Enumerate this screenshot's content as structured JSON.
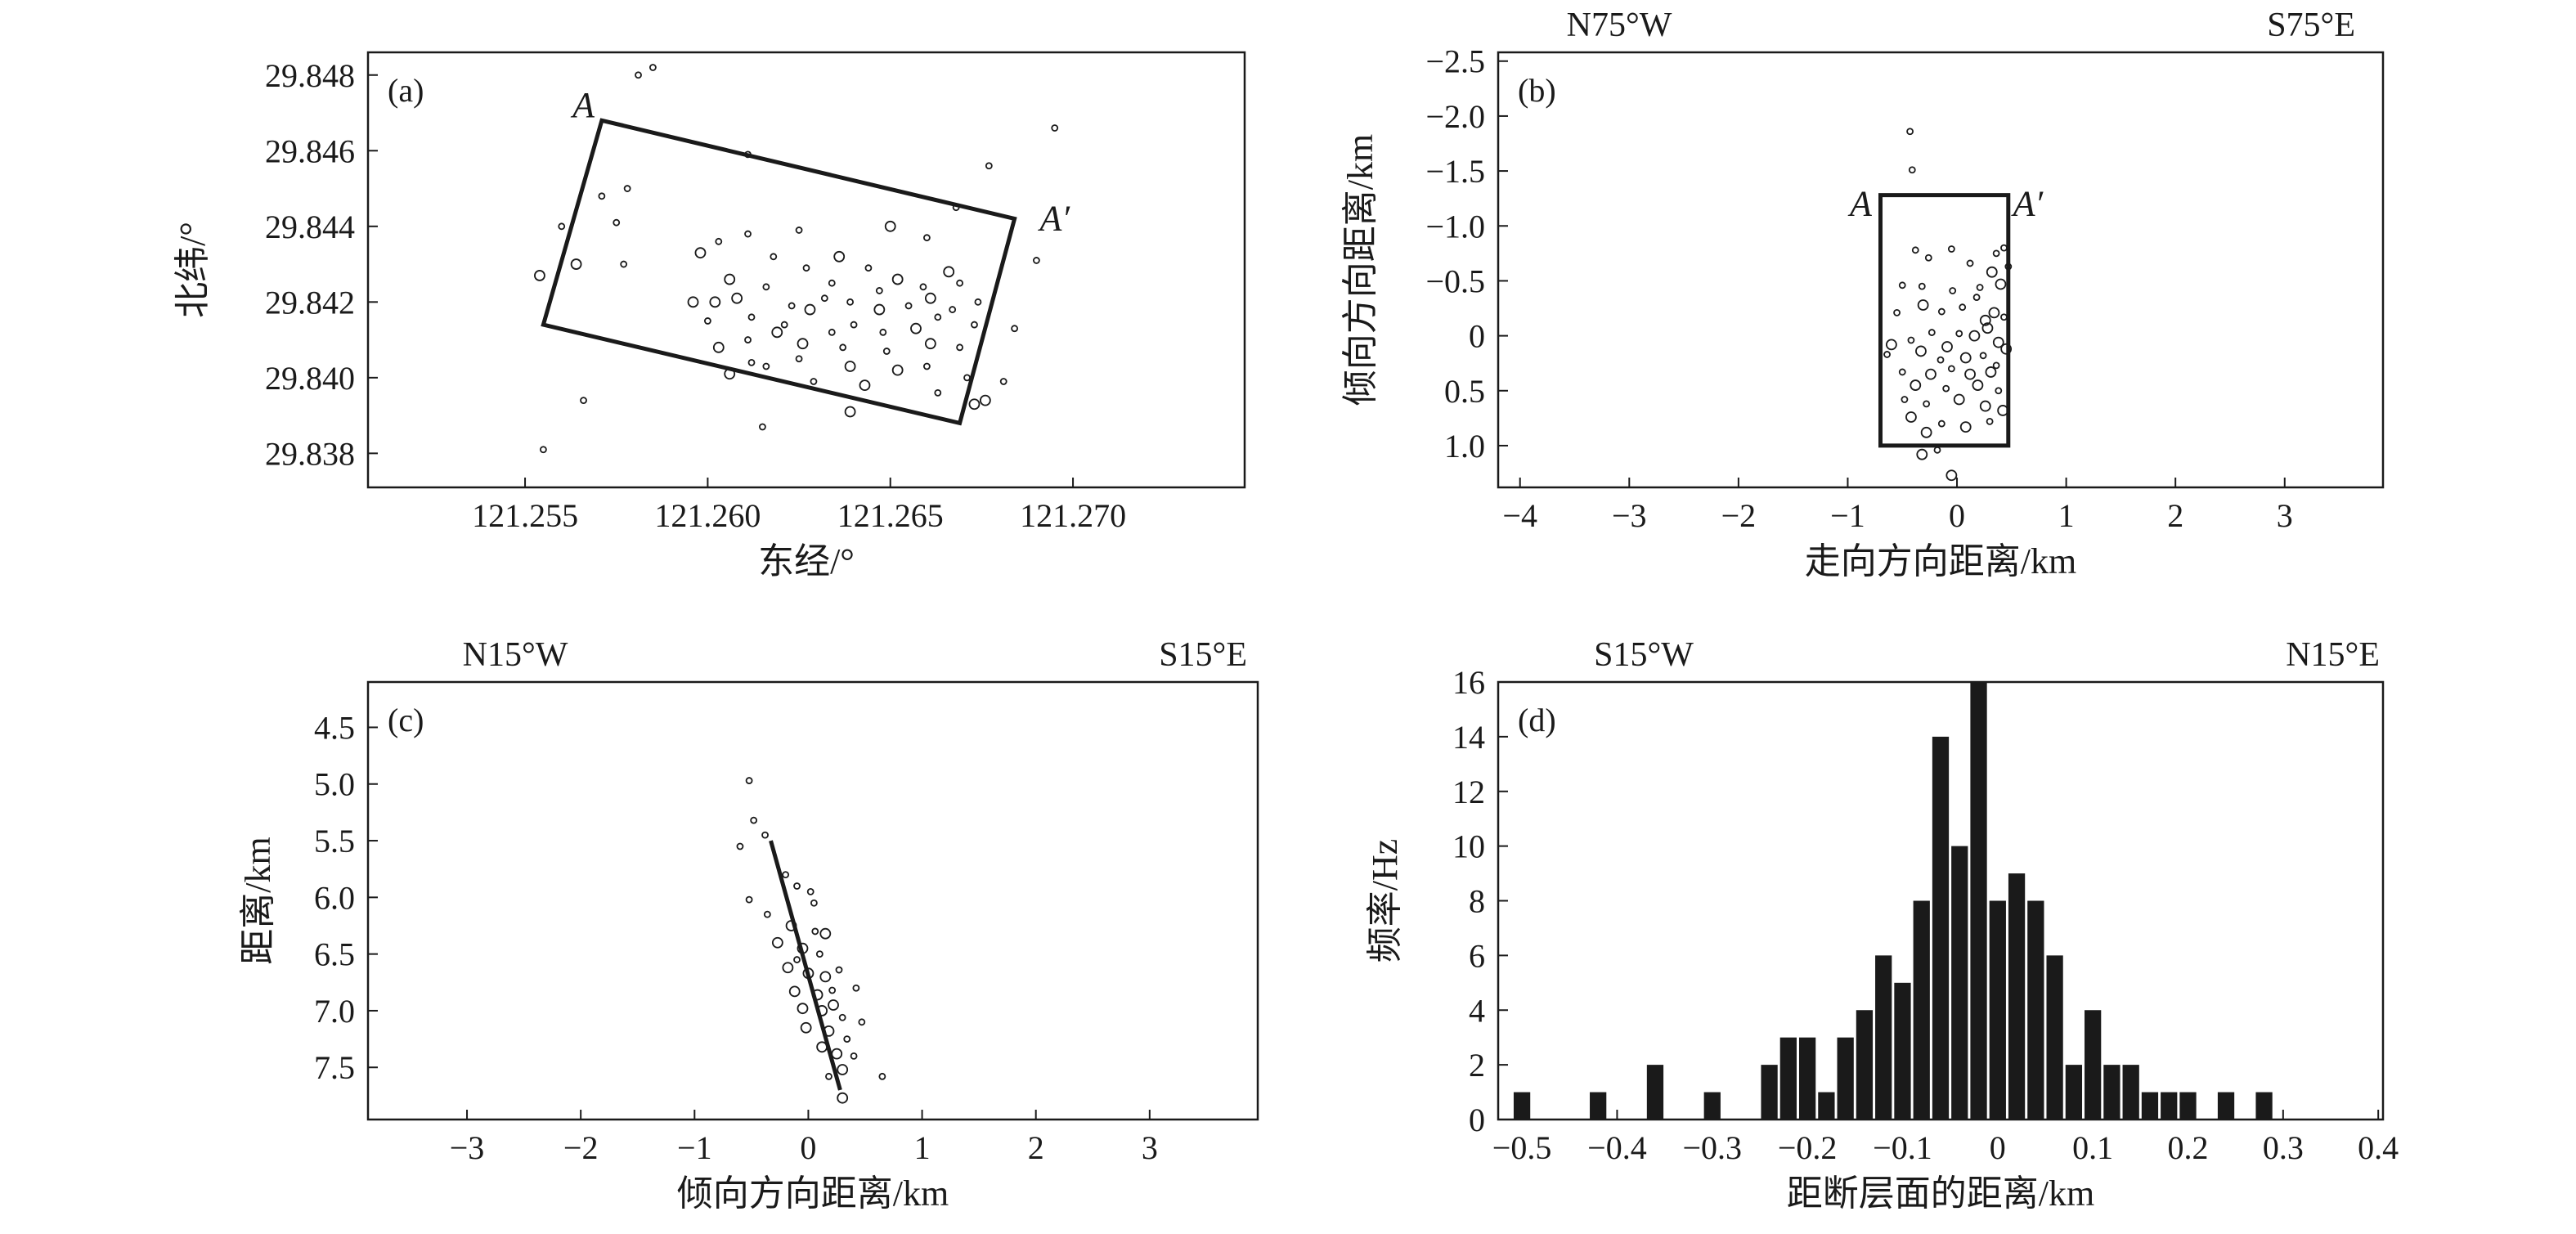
{
  "chart_data": [
    {
      "panel": "a",
      "type": "scatter",
      "panel_label": "(a)",
      "xlabel": "东经/°",
      "ylabel": "北纬/°",
      "xticks": [
        121.255,
        121.26,
        121.265,
        121.27
      ],
      "xtick_labels": [
        "121.255",
        "121.260",
        "121.265",
        "121.270"
      ],
      "yticks": [
        29.838,
        29.84,
        29.842,
        29.844,
        29.846,
        29.848
      ],
      "ytick_labels": [
        "29.838",
        "29.840",
        "29.842",
        "29.844",
        "29.846",
        "29.848"
      ],
      "xlim": [
        121.2507,
        121.2747
      ],
      "ylim": [
        29.8371,
        29.8486
      ],
      "outline": {
        "corners": [
          [
            121.2571,
            29.8468
          ],
          [
            121.2684,
            29.8442
          ],
          [
            121.2669,
            29.8388
          ],
          [
            121.2555,
            29.8414
          ]
        ],
        "labels": [
          {
            "text": "A",
            "x": 121.2566,
            "y": 29.8472
          },
          {
            "text": "A′",
            "x": 121.2695,
            "y": 29.8442
          }
        ]
      },
      "points": [
        [
          121.2581,
          29.848,
          1
        ],
        [
          121.2585,
          29.8482,
          1
        ],
        [
          121.2695,
          29.8466,
          1
        ],
        [
          121.2677,
          29.8456,
          1
        ],
        [
          121.2611,
          29.8459,
          1
        ],
        [
          121.2571,
          29.8448,
          1
        ],
        [
          121.2578,
          29.845,
          1
        ],
        [
          121.256,
          29.844,
          1
        ],
        [
          121.2575,
          29.8441,
          1
        ],
        [
          121.2625,
          29.8439,
          1
        ],
        [
          121.265,
          29.844,
          2
        ],
        [
          121.2668,
          29.8445,
          1
        ],
        [
          121.266,
          29.8437,
          1
        ],
        [
          121.2554,
          29.8427,
          2
        ],
        [
          121.2564,
          29.843,
          2
        ],
        [
          121.2577,
          29.843,
          1
        ],
        [
          121.2598,
          29.8433,
          2
        ],
        [
          121.2603,
          29.8436,
          1
        ],
        [
          121.2611,
          29.8438,
          1
        ],
        [
          121.2618,
          29.8432,
          1
        ],
        [
          121.2627,
          29.8429,
          1
        ],
        [
          121.2636,
          29.8432,
          2
        ],
        [
          121.2606,
          29.8426,
          2
        ],
        [
          121.2616,
          29.8424,
          1
        ],
        [
          121.2634,
          29.8425,
          1
        ],
        [
          121.2644,
          29.8429,
          1
        ],
        [
          121.2652,
          29.8426,
          2
        ],
        [
          121.2659,
          29.8424,
          1
        ],
        [
          121.2669,
          29.8425,
          1
        ],
        [
          121.269,
          29.8431,
          1
        ],
        [
          121.2596,
          29.842,
          2
        ],
        [
          121.2602,
          29.842,
          2
        ],
        [
          121.2608,
          29.8421,
          2
        ],
        [
          121.2612,
          29.8416,
          1
        ],
        [
          121.2623,
          29.8419,
          1
        ],
        [
          121.2628,
          29.8418,
          2
        ],
        [
          121.2632,
          29.8421,
          1
        ],
        [
          121.2639,
          29.842,
          1
        ],
        [
          121.2647,
          29.8418,
          2
        ],
        [
          121.2655,
          29.8419,
          1
        ],
        [
          121.2661,
          29.8421,
          2
        ],
        [
          121.2667,
          29.8418,
          1
        ],
        [
          121.2674,
          29.842,
          1
        ],
        [
          121.26,
          29.8415,
          1
        ],
        [
          121.2619,
          29.8412,
          2
        ],
        [
          121.264,
          29.8414,
          1
        ],
        [
          121.2648,
          29.8412,
          1
        ],
        [
          121.2657,
          29.8413,
          2
        ],
        [
          121.2663,
          29.8416,
          1
        ],
        [
          121.2673,
          29.8414,
          1
        ],
        [
          121.2603,
          29.8408,
          2
        ],
        [
          121.2611,
          29.841,
          1
        ],
        [
          121.2626,
          29.8409,
          2
        ],
        [
          121.2637,
          29.8408,
          1
        ],
        [
          121.2649,
          29.8407,
          1
        ],
        [
          121.2661,
          29.8409,
          2
        ],
        [
          121.2669,
          29.8408,
          1
        ],
        [
          121.2612,
          29.8404,
          1
        ],
        [
          121.2625,
          29.8405,
          1
        ],
        [
          121.2639,
          29.8403,
          2
        ],
        [
          121.2652,
          29.8402,
          2
        ],
        [
          121.266,
          29.8403,
          1
        ],
        [
          121.2671,
          29.84,
          1
        ],
        [
          121.2606,
          29.8401,
          2
        ],
        [
          121.2616,
          29.8403,
          1
        ],
        [
          121.2629,
          29.8399,
          1
        ],
        [
          121.2643,
          29.8398,
          2
        ],
        [
          121.2663,
          29.8396,
          1
        ],
        [
          121.2673,
          29.8393,
          2
        ],
        [
          121.2676,
          29.8394,
          2
        ],
        [
          121.2681,
          29.8399,
          1
        ],
        [
          121.2639,
          29.8391,
          2
        ],
        [
          121.2615,
          29.8387,
          1
        ],
        [
          121.2566,
          29.8394,
          1
        ],
        [
          121.2555,
          29.8381,
          1
        ],
        [
          121.2684,
          29.8413,
          1
        ],
        [
          121.2621,
          29.8414,
          1
        ],
        [
          121.2634,
          29.8412,
          1
        ],
        [
          121.2647,
          29.8423,
          1
        ],
        [
          121.2666,
          29.8428,
          2
        ]
      ]
    },
    {
      "panel": "b",
      "type": "scatter",
      "panel_label": "(b)",
      "left_direction": "N75°W",
      "right_direction": "S75°E",
      "xlabel": "走向方向距离/km",
      "ylabel": "倾向方向距离/km",
      "xticks": [
        -4,
        -3,
        -2,
        -1,
        0,
        1,
        2,
        3
      ],
      "xtick_labels": [
        "−4",
        "−3",
        "−2",
        "−1",
        "0",
        "1",
        "2",
        "3"
      ],
      "yticks": [
        -2.5,
        -2.0,
        -1.5,
        -1.0,
        -0.5,
        0,
        0.5,
        1.0
      ],
      "ytick_labels": [
        "−2.5",
        "−2.0",
        "−1.5",
        "−1.0",
        "−0.5",
        "0",
        "0.5",
        "1.0"
      ],
      "xlim": [
        -4.2,
        3.9
      ],
      "ylim": [
        -2.58,
        1.38
      ],
      "y_inverted": true,
      "outline": {
        "corners": [
          [
            -0.7,
            -1.28
          ],
          [
            0.47,
            -1.28
          ],
          [
            0.47,
            1.0
          ],
          [
            -0.7,
            1.0
          ]
        ],
        "labels": [
          {
            "text": "A",
            "x": -0.88,
            "y": -1.2
          },
          {
            "text": "A′",
            "x": 0.65,
            "y": -1.2
          }
        ]
      },
      "points": [
        [
          -0.43,
          -1.86,
          1
        ],
        [
          -0.41,
          -1.51,
          1
        ],
        [
          -0.38,
          -0.78,
          1
        ],
        [
          -0.26,
          -0.71,
          1
        ],
        [
          -0.05,
          -0.79,
          1
        ],
        [
          0.12,
          -0.66,
          1
        ],
        [
          0.36,
          -0.75,
          1
        ],
        [
          0.43,
          -0.8,
          1
        ],
        [
          0.47,
          -0.63,
          1
        ],
        [
          -0.5,
          -0.46,
          1
        ],
        [
          -0.32,
          -0.45,
          1
        ],
        [
          -0.04,
          -0.41,
          1
        ],
        [
          0.21,
          -0.44,
          1
        ],
        [
          0.32,
          -0.58,
          2
        ],
        [
          0.4,
          -0.47,
          2
        ],
        [
          -0.55,
          -0.21,
          1
        ],
        [
          -0.31,
          -0.28,
          2
        ],
        [
          -0.14,
          -0.22,
          1
        ],
        [
          0.05,
          -0.26,
          1
        ],
        [
          0.26,
          -0.14,
          2
        ],
        [
          0.34,
          -0.21,
          2
        ],
        [
          0.43,
          -0.17,
          1
        ],
        [
          -0.6,
          0.08,
          2
        ],
        [
          -0.42,
          0.04,
          1
        ],
        [
          -0.23,
          -0.03,
          1
        ],
        [
          0.02,
          -0.02,
          1
        ],
        [
          0.16,
          0.0,
          2
        ],
        [
          0.28,
          -0.07,
          2
        ],
        [
          0.38,
          0.06,
          2
        ],
        [
          -0.64,
          0.17,
          1
        ],
        [
          -0.33,
          0.14,
          2
        ],
        [
          -0.15,
          0.22,
          1
        ],
        [
          0.08,
          0.2,
          2
        ],
        [
          0.24,
          0.18,
          1
        ],
        [
          0.45,
          0.12,
          2
        ],
        [
          -0.5,
          0.33,
          1
        ],
        [
          -0.24,
          0.35,
          2
        ],
        [
          -0.05,
          0.3,
          1
        ],
        [
          0.12,
          0.35,
          2
        ],
        [
          0.31,
          0.33,
          2
        ],
        [
          -0.38,
          0.45,
          2
        ],
        [
          -0.1,
          0.48,
          1
        ],
        [
          0.19,
          0.45,
          2
        ],
        [
          0.38,
          0.5,
          1
        ],
        [
          -0.28,
          0.62,
          1
        ],
        [
          0.02,
          0.58,
          2
        ],
        [
          0.26,
          0.64,
          2
        ],
        [
          0.42,
          0.68,
          2
        ],
        [
          -0.42,
          0.74,
          2
        ],
        [
          -0.14,
          0.8,
          1
        ],
        [
          0.08,
          0.83,
          2
        ],
        [
          0.3,
          0.78,
          1
        ],
        [
          -0.28,
          0.88,
          2
        ],
        [
          -0.32,
          1.08,
          2
        ],
        [
          -0.18,
          1.04,
          1
        ],
        [
          -0.05,
          1.27,
          2
        ],
        [
          -0.48,
          0.58,
          1
        ],
        [
          0.36,
          0.27,
          1
        ],
        [
          -0.09,
          0.1,
          2
        ],
        [
          0.18,
          -0.35,
          1
        ]
      ]
    },
    {
      "panel": "c",
      "type": "scatter",
      "panel_label": "(c)",
      "left_direction": "N15°W",
      "right_direction": "S15°E",
      "xlabel": "倾向方向距离/km",
      "ylabel": "距离/km",
      "xticks": [
        -3,
        -2,
        -1,
        0,
        1,
        2,
        3
      ],
      "xtick_labels": [
        "−3",
        "−2",
        "−1",
        "0",
        "1",
        "2",
        "3"
      ],
      "yticks": [
        4.5,
        5.0,
        5.5,
        6.0,
        6.5,
        7.0,
        7.5
      ],
      "ytick_labels": [
        "4.5",
        "5.0",
        "5.5",
        "6.0",
        "6.5",
        "7.0",
        "7.5"
      ],
      "xlim": [
        -3.87,
        3.95
      ],
      "ylim": [
        4.1,
        7.96
      ],
      "y_inverted": true,
      "outline": {
        "line": [
          [
            -0.33,
            5.5
          ],
          [
            0.28,
            7.7
          ]
        ]
      },
      "points": [
        [
          -0.52,
          4.97,
          1
        ],
        [
          -0.48,
          5.32,
          1
        ],
        [
          -0.6,
          5.55,
          1
        ],
        [
          -0.38,
          5.45,
          1
        ],
        [
          -0.2,
          5.8,
          1
        ],
        [
          -0.1,
          5.9,
          1
        ],
        [
          0.02,
          5.95,
          1
        ],
        [
          -0.52,
          6.02,
          1
        ],
        [
          -0.36,
          6.15,
          1
        ],
        [
          -0.15,
          6.25,
          2
        ],
        [
          0.06,
          6.3,
          1
        ],
        [
          0.15,
          6.32,
          2
        ],
        [
          -0.27,
          6.4,
          2
        ],
        [
          -0.05,
          6.45,
          2
        ],
        [
          0.1,
          6.5,
          1
        ],
        [
          -0.18,
          6.62,
          2
        ],
        [
          0.0,
          6.67,
          2
        ],
        [
          0.15,
          6.7,
          2
        ],
        [
          0.27,
          6.64,
          1
        ],
        [
          -0.12,
          6.83,
          2
        ],
        [
          0.08,
          6.86,
          2
        ],
        [
          0.21,
          6.82,
          1
        ],
        [
          0.42,
          6.8,
          1
        ],
        [
          -0.05,
          6.98,
          2
        ],
        [
          0.12,
          7.0,
          2
        ],
        [
          0.3,
          7.06,
          1
        ],
        [
          -0.02,
          7.15,
          2
        ],
        [
          0.18,
          7.18,
          2
        ],
        [
          0.34,
          7.25,
          1
        ],
        [
          0.12,
          7.32,
          2
        ],
        [
          0.25,
          7.38,
          2
        ],
        [
          0.3,
          7.52,
          2
        ],
        [
          0.18,
          7.58,
          1
        ],
        [
          0.65,
          7.58,
          1
        ],
        [
          0.3,
          7.77,
          2
        ],
        [
          0.47,
          7.1,
          1
        ],
        [
          0.05,
          6.05,
          1
        ],
        [
          -0.1,
          6.55,
          1
        ],
        [
          0.22,
          6.95,
          2
        ],
        [
          0.4,
          7.4,
          1
        ]
      ]
    },
    {
      "panel": "d",
      "type": "bar",
      "panel_label": "(d)",
      "left_direction": "S15°W",
      "right_direction": "N15°E",
      "xlabel": "距断层面的距离/km",
      "ylabel": "频率/Hz",
      "xticks": [
        -0.5,
        -0.4,
        -0.3,
        -0.2,
        -0.1,
        0,
        0.1,
        0.2,
        0.3,
        0.4
      ],
      "xtick_labels": [
        "−0.5",
        "−0.4",
        "−0.3",
        "−0.2",
        "−0.1",
        "0",
        "0.1",
        "0.2",
        "0.3",
        "0.4"
      ],
      "yticks": [
        0,
        2,
        4,
        6,
        8,
        10,
        12,
        14,
        16
      ],
      "ytick_labels": [
        "0",
        "2",
        "4",
        "6",
        "8",
        "10",
        "12",
        "14",
        "16"
      ],
      "xlim": [
        -0.525,
        0.405
      ],
      "ylim": [
        0,
        16
      ],
      "bin_width": 0.02,
      "bins": [
        -0.5,
        -0.48,
        -0.46,
        -0.44,
        -0.42,
        -0.4,
        -0.38,
        -0.36,
        -0.34,
        -0.32,
        -0.3,
        -0.28,
        -0.26,
        -0.24,
        -0.22,
        -0.2,
        -0.18,
        -0.16,
        -0.14,
        -0.12,
        -0.1,
        -0.08,
        -0.06,
        -0.04,
        -0.02,
        0.0,
        0.02,
        0.04,
        0.06,
        0.08,
        0.1,
        0.12,
        0.14,
        0.16,
        0.18,
        0.2,
        0.22,
        0.24,
        0.26,
        0.28,
        0.3,
        0.32,
        0.34,
        0.36,
        0.38
      ],
      "values": [
        1,
        0,
        0,
        0,
        1,
        0,
        0,
        2,
        0,
        0,
        1,
        0,
        0,
        2,
        3,
        3,
        1,
        3,
        4,
        6,
        5,
        8,
        14,
        10,
        16,
        8,
        9,
        8,
        6,
        2,
        4,
        2,
        2,
        1,
        1,
        1,
        0,
        1,
        0,
        1,
        0,
        0,
        0,
        0,
        0
      ]
    }
  ]
}
